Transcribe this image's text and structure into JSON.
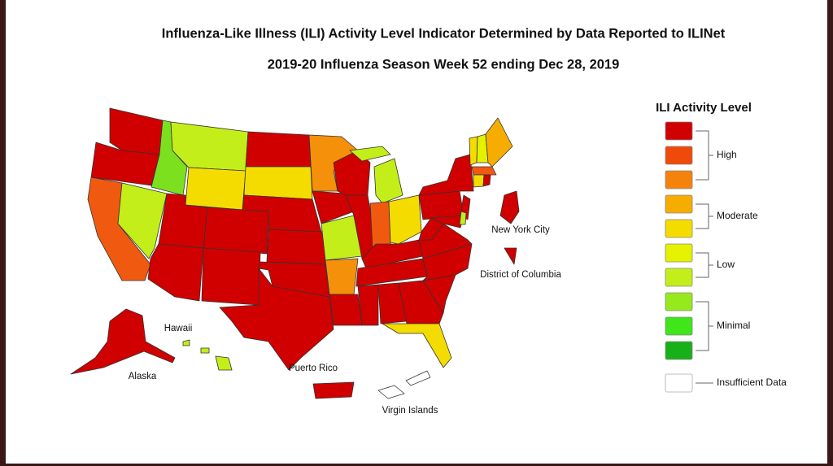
{
  "header": {
    "title": "Influenza-Like Illness (ILI) Activity Level Indicator Determined by Data Reported to ILINet",
    "subtitle": "2019-20 Influenza Season Week 52 ending Dec 28, 2019"
  },
  "map": {
    "labels": [
      "New York City",
      "District of Columbia",
      "Hawaii",
      "Alaska",
      "Puerto Rico",
      "Virgin Islands"
    ]
  },
  "legend": {
    "title": "ILI Activity Level",
    "colors": [
      "#d00000",
      "#f04a0a",
      "#f5820a",
      "#f7ad00",
      "#f5dc00",
      "#e4f200",
      "#c4ee1a",
      "#96ea1c",
      "#3ee61a",
      "#18b018"
    ],
    "levels": [
      "High",
      "Moderate",
      "Low",
      "Minimal"
    ],
    "insufficient": "Insufficient Data"
  }
}
